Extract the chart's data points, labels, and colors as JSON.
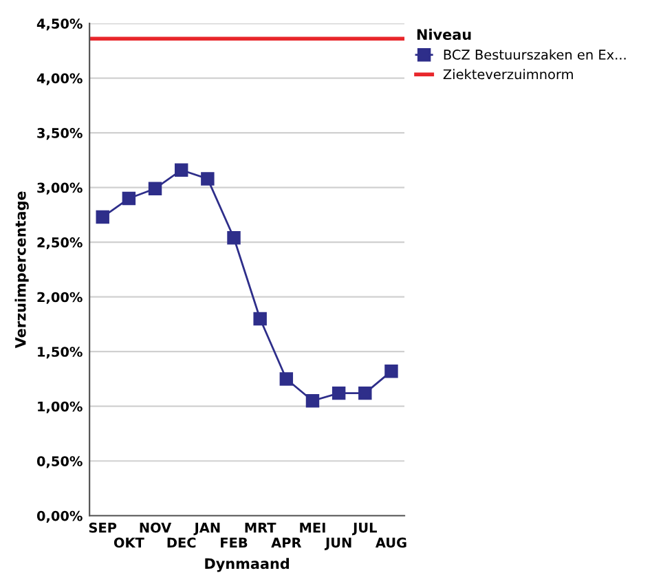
{
  "chart_data": {
    "type": "line",
    "xlabel": "Dynmaand",
    "ylabel": "Verzuimpercentage",
    "legend_title": "Niveau",
    "categories": [
      "SEP",
      "OKT",
      "NOV",
      "DEC",
      "JAN",
      "FEB",
      "MRT",
      "APR",
      "MEI",
      "JUN",
      "JUL",
      "AUG"
    ],
    "series": [
      {
        "name": "BCZ Bestuurszaken en Ex...",
        "color": "#2e2e8a",
        "values": [
          2.73,
          2.9,
          2.99,
          3.16,
          3.08,
          2.54,
          1.8,
          1.25,
          1.05,
          1.12,
          1.12,
          1.32
        ]
      }
    ],
    "ref_lines": [
      {
        "axis": "y",
        "value": 4.36,
        "label": "Ziekteverzuimnorm",
        "color": "#e8262b"
      }
    ],
    "ylim": [
      0,
      4.5
    ],
    "yticks": [
      {
        "value": 0,
        "label": "0,00%"
      },
      {
        "value": 0.5,
        "label": "0,50%"
      },
      {
        "value": 1,
        "label": "1,00%"
      },
      {
        "value": 1.5,
        "label": "1,50%"
      },
      {
        "value": 2,
        "label": "2,00%"
      },
      {
        "value": 2.5,
        "label": "2,50%"
      },
      {
        "value": 3,
        "label": "3,00%"
      },
      {
        "value": 3.5,
        "label": "3,50%"
      },
      {
        "value": 4,
        "label": "4,00%"
      },
      {
        "value": 4.5,
        "label": "4,50%"
      }
    ],
    "grid": "y",
    "legend": "top right",
    "marker": "square",
    "line_style": "solid"
  }
}
